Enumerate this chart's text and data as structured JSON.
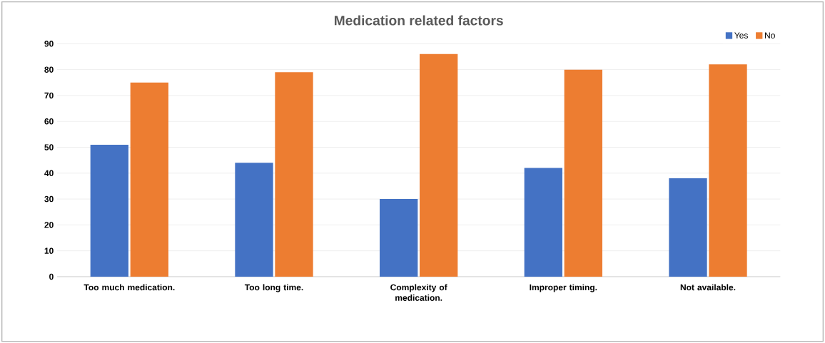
{
  "chart_data": {
    "type": "bar",
    "title": "Medication related factors",
    "categories": [
      "Too much medication.",
      "Too long time.",
      "Complexity of medication.",
      "Improper timing.",
      "Not available."
    ],
    "series": [
      {
        "name": "Yes",
        "color": "#4472c4",
        "values": [
          51,
          44,
          30,
          42,
          38
        ]
      },
      {
        "name": "No",
        "color": "#ed7d31",
        "values": [
          75,
          79,
          86,
          80,
          82
        ]
      }
    ],
    "ylim": [
      0,
      90
    ],
    "yticks": [
      0,
      10,
      20,
      30,
      40,
      50,
      60,
      70,
      80,
      90
    ],
    "grid": "y",
    "legend": "top right"
  }
}
